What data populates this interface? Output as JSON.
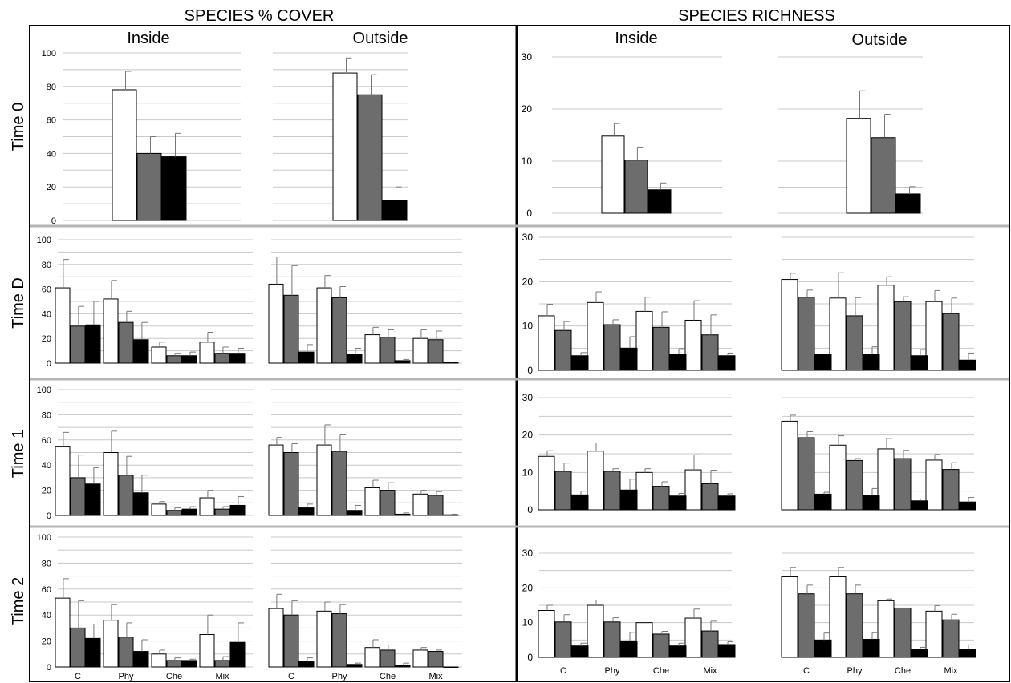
{
  "headers": {
    "cover": "SPECIES % COVER",
    "richness": "SPECIES RICHNESS"
  },
  "side_labels": {
    "inside": "Inside",
    "outside": "Outside"
  },
  "row_labels": [
    "Time 0",
    "Time D",
    "Time 1",
    "Time 2"
  ],
  "colors": {
    "series_1": "#ffffff",
    "series_2": "#6d6d6d",
    "series_3": "#000000",
    "gridline": "#c8c8c8",
    "divider": "#b4b4b4"
  },
  "chart_data": [
    {
      "id": "cover_inside_t0",
      "type": "bar",
      "metric": "cover",
      "side": "inside",
      "time": "Time 0",
      "yticks": [
        0,
        20,
        40,
        60,
        80,
        100
      ],
      "ylim": [
        0,
        100
      ],
      "categories": [
        ""
      ],
      "series": [
        {
          "values": [
            78
          ]
        },
        {
          "values": [
            40
          ]
        },
        {
          "values": [
            38
          ]
        }
      ],
      "errors": [
        [
          11
        ],
        [
          10
        ],
        [
          14
        ]
      ]
    },
    {
      "id": "cover_outside_t0",
      "type": "bar",
      "metric": "cover",
      "side": "outside",
      "time": "Time 0",
      "yticks": [],
      "ylim": [
        0,
        100
      ],
      "categories": [
        ""
      ],
      "series": [
        {
          "values": [
            88
          ]
        },
        {
          "values": [
            75
          ]
        },
        {
          "values": [
            12
          ]
        }
      ],
      "errors": [
        [
          9
        ],
        [
          12
        ],
        [
          8
        ]
      ]
    },
    {
      "id": "rich_inside_t0",
      "type": "bar",
      "metric": "richness",
      "side": "inside",
      "time": "Time 0",
      "yticks": [
        0,
        10,
        20,
        30
      ],
      "ylim": [
        0,
        30
      ],
      "categories": [
        ""
      ],
      "series": [
        {
          "values": [
            14.8
          ]
        },
        {
          "values": [
            10.2
          ]
        },
        {
          "values": [
            4.5
          ]
        }
      ],
      "errors": [
        [
          2.4
        ],
        [
          2.5
        ],
        [
          1.3
        ]
      ]
    },
    {
      "id": "rich_outside_t0",
      "type": "bar",
      "metric": "richness",
      "side": "outside",
      "time": "Time 0",
      "yticks": [],
      "ylim": [
        0,
        30
      ],
      "categories": [
        ""
      ],
      "series": [
        {
          "values": [
            18.2
          ]
        },
        {
          "values": [
            14.5
          ]
        },
        {
          "values": [
            3.7
          ]
        }
      ],
      "errors": [
        [
          5.3
        ],
        [
          4.5
        ],
        [
          1.4
        ]
      ]
    },
    {
      "id": "cover_inside_td",
      "type": "bar",
      "metric": "cover",
      "side": "inside",
      "time": "Time D",
      "yticks": [
        0,
        20,
        40,
        60,
        80,
        100
      ],
      "ylim": [
        0,
        100
      ],
      "categories": [
        "",
        "",
        "",
        ""
      ],
      "series": [
        {
          "values": [
            61,
            52,
            13,
            17
          ]
        },
        {
          "values": [
            30,
            33,
            6,
            8
          ]
        },
        {
          "values": [
            31,
            19,
            6,
            8
          ]
        }
      ],
      "errors": [
        [
          23,
          15,
          4,
          8
        ],
        [
          16,
          9,
          2,
          5
        ],
        [
          19,
          14,
          3,
          4
        ]
      ]
    },
    {
      "id": "cover_outside_td",
      "type": "bar",
      "metric": "cover",
      "side": "outside",
      "time": "Time D",
      "yticks": [],
      "ylim": [
        0,
        100
      ],
      "categories": [
        "",
        "",
        "",
        ""
      ],
      "series": [
        {
          "values": [
            64,
            61,
            23,
            20
          ]
        },
        {
          "values": [
            55,
            53,
            21,
            19
          ]
        },
        {
          "values": [
            9,
            7,
            2,
            0.5
          ]
        }
      ],
      "errors": [
        [
          22,
          10,
          6,
          7
        ],
        [
          24,
          9,
          6,
          7
        ],
        [
          6,
          5,
          1,
          0.5
        ]
      ]
    },
    {
      "id": "rich_inside_td",
      "type": "bar",
      "metric": "richness",
      "side": "inside",
      "time": "Time D",
      "yticks": [
        0,
        10,
        20,
        30
      ],
      "ylim": [
        0,
        30
      ],
      "categories": [
        "",
        "",
        "",
        ""
      ],
      "series": [
        {
          "values": [
            12.3,
            15.3,
            13.3,
            11.3
          ]
        },
        {
          "values": [
            9,
            10.3,
            9.7,
            8
          ]
        },
        {
          "values": [
            3.3,
            5,
            3.7,
            3.3
          ]
        }
      ],
      "errors": [
        [
          2.6,
          2.4,
          3.2,
          4.4
        ],
        [
          2,
          1.1,
          3.5,
          4.5
        ],
        [
          0.7,
          2.6,
          1.2,
          0.6
        ]
      ]
    },
    {
      "id": "rich_outside_td",
      "type": "bar",
      "metric": "richness",
      "side": "outside",
      "time": "Time D",
      "yticks": [],
      "ylim": [
        0,
        30
      ],
      "categories": [
        "",
        "",
        "",
        ""
      ],
      "series": [
        {
          "values": [
            20.5,
            16.3,
            19.2,
            15.5
          ]
        },
        {
          "values": [
            16.5,
            12.3,
            15.5,
            12.8
          ]
        },
        {
          "values": [
            3.7,
            3.7,
            3.3,
            2.3
          ]
        }
      ],
      "errors": [
        [
          1.4,
          5.7,
          1.9,
          2.5
        ],
        [
          1.6,
          4.1,
          1.1,
          3.5
        ],
        [
          0,
          1.6,
          1.4,
          1.6
        ]
      ]
    },
    {
      "id": "cover_inside_t1",
      "type": "bar",
      "metric": "cover",
      "side": "inside",
      "time": "Time 1",
      "yticks": [
        0,
        20,
        40,
        60,
        80,
        100
      ],
      "ylim": [
        0,
        100
      ],
      "categories": [
        "",
        "",
        "",
        ""
      ],
      "series": [
        {
          "values": [
            55,
            50,
            9,
            14
          ]
        },
        {
          "values": [
            30,
            32,
            4,
            5
          ]
        },
        {
          "values": [
            25,
            18,
            5,
            8
          ]
        }
      ],
      "errors": [
        [
          11,
          17,
          2,
          6
        ],
        [
          18,
          15,
          2,
          2
        ],
        [
          13,
          14,
          2,
          7
        ]
      ]
    },
    {
      "id": "cover_outside_t1",
      "type": "bar",
      "metric": "cover",
      "side": "outside",
      "time": "Time 1",
      "yticks": [],
      "ylim": [
        0,
        100
      ],
      "categories": [
        "",
        "",
        "",
        ""
      ],
      "series": [
        {
          "values": [
            56,
            56,
            22,
            17
          ]
        },
        {
          "values": [
            50,
            51,
            20,
            16
          ]
        },
        {
          "values": [
            6,
            4,
            1,
            0.5
          ]
        }
      ],
      "errors": [
        [
          6,
          16,
          6,
          3
        ],
        [
          7,
          13,
          6,
          3
        ],
        [
          3,
          4,
          1,
          0.5
        ]
      ]
    },
    {
      "id": "rich_inside_t1",
      "type": "bar",
      "metric": "richness",
      "side": "inside",
      "time": "Time 1",
      "yticks": [
        0,
        10,
        20,
        30
      ],
      "ylim": [
        0,
        30
      ],
      "categories": [
        "",
        "",
        "",
        ""
      ],
      "series": [
        {
          "values": [
            14.3,
            15.7,
            10,
            10.7
          ]
        },
        {
          "values": [
            10.3,
            10.3,
            6.3,
            7
          ]
        },
        {
          "values": [
            4,
            5.3,
            3.7,
            3.7
          ]
        }
      ],
      "errors": [
        [
          1.5,
          2.2,
          1,
          4
        ],
        [
          2.2,
          0.7,
          1.2,
          3.6
        ],
        [
          1,
          2.9,
          0.7,
          0.6
        ]
      ]
    },
    {
      "id": "rich_outside_t1",
      "type": "bar",
      "metric": "richness",
      "side": "outside",
      "time": "Time 1",
      "yticks": [],
      "ylim": [
        0,
        30
      ],
      "categories": [
        "",
        "",
        "",
        ""
      ],
      "series": [
        {
          "values": [
            23.7,
            17.3,
            16.3,
            13.3
          ]
        },
        {
          "values": [
            19.3,
            13.2,
            13.7,
            10.8
          ]
        },
        {
          "values": [
            4.2,
            3.8,
            2.4,
            2.1
          ]
        }
      ],
      "errors": [
        [
          1.6,
          2.5,
          2.8,
          1.5
        ],
        [
          1.6,
          0.5,
          2.2,
          1.8
        ],
        [
          0.5,
          1.9,
          0.5,
          1.2
        ]
      ]
    },
    {
      "id": "cover_inside_t2",
      "type": "bar",
      "metric": "cover",
      "side": "inside",
      "time": "Time 2",
      "yticks": [
        0,
        20,
        40,
        60,
        80,
        100
      ],
      "ylim": [
        0,
        100
      ],
      "categories": [
        "C",
        "Phy",
        "Che",
        "Mix"
      ],
      "series": [
        {
          "values": [
            53,
            36,
            10,
            25
          ]
        },
        {
          "values": [
            30,
            23,
            5,
            5
          ]
        },
        {
          "values": [
            22,
            12,
            5,
            19
          ]
        }
      ],
      "errors": [
        [
          15,
          12,
          3,
          15
        ],
        [
          21,
          11,
          2,
          3
        ],
        [
          11,
          9,
          1,
          15
        ]
      ]
    },
    {
      "id": "cover_outside_t2",
      "type": "bar",
      "metric": "cover",
      "side": "outside",
      "time": "Time 2",
      "yticks": [],
      "ylim": [
        0,
        100
      ],
      "categories": [
        "C",
        "Phy",
        "Che",
        "Mix"
      ],
      "series": [
        {
          "values": [
            45,
            43,
            15,
            13
          ]
        },
        {
          "values": [
            40,
            41,
            13,
            12
          ]
        },
        {
          "values": [
            4,
            2,
            1,
            0
          ]
        }
      ],
      "errors": [
        [
          11,
          7,
          6,
          2
        ],
        [
          11,
          7,
          4,
          1
        ],
        [
          3,
          1,
          2,
          0
        ]
      ]
    },
    {
      "id": "rich_inside_t2",
      "type": "bar",
      "metric": "richness",
      "side": "inside",
      "time": "Time 2",
      "yticks": [
        0,
        10,
        20,
        30
      ],
      "ylim": [
        0,
        30
      ],
      "categories": [
        "C",
        "Phy",
        "Che",
        "Mix"
      ],
      "series": [
        {
          "values": [
            13.5,
            15,
            10,
            11.3
          ]
        },
        {
          "values": [
            10.2,
            10.2,
            6.7,
            7.6
          ]
        },
        {
          "values": [
            3.3,
            4.7,
            3.3,
            3.7
          ]
        }
      ],
      "errors": [
        [
          1.5,
          1.5,
          0,
          2.6
        ],
        [
          2.1,
          1.2,
          0.8,
          2.8
        ],
        [
          0.8,
          2.5,
          0.8,
          0.8
        ]
      ]
    },
    {
      "id": "rich_outside_t2",
      "type": "bar",
      "metric": "richness",
      "side": "outside",
      "time": "Time 2",
      "yticks": [],
      "ylim": [
        0,
        30
      ],
      "categories": [
        "C",
        "Phy",
        "Che",
        "Mix"
      ],
      "series": [
        {
          "values": [
            23.2,
            23.2,
            16.3,
            13.3
          ]
        },
        {
          "values": [
            18.3,
            18.3,
            14.2,
            10.8
          ]
        },
        {
          "values": [
            5,
            5.2,
            2.4,
            2.4
          ]
        }
      ],
      "errors": [
        [
          2.7,
          2.7,
          0.5,
          1.6
        ],
        [
          2.5,
          2.5,
          0,
          1.6
        ],
        [
          2,
          1.9,
          0.5,
          1.2
        ]
      ]
    }
  ]
}
